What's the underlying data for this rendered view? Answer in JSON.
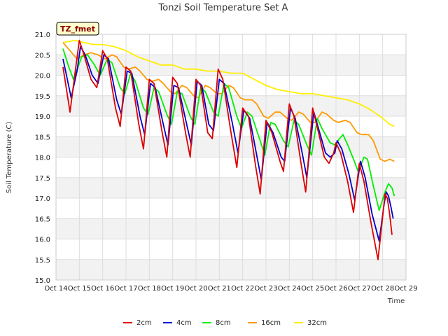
{
  "chart_data": {
    "type": "line",
    "title": "Tonzi Soil Temperature Set A",
    "xlabel": "Time",
    "ylabel": "Soil Temperature (C)",
    "annotation": "TZ_fmet",
    "ylim": [
      15.0,
      21.0
    ],
    "xlim": [
      14,
      29
    ],
    "y_ticks": [
      "15.0",
      "15.5",
      "16.0",
      "16.5",
      "17.0",
      "17.5",
      "18.0",
      "18.5",
      "19.0",
      "19.5",
      "20.0",
      "20.5",
      "21.0"
    ],
    "x_ticks": [
      "Oct 14",
      "Oct 15",
      "Oct 16",
      "Oct 17",
      "Oct 18",
      "Oct 19",
      "Oct 20",
      "Oct 21",
      "Oct 22",
      "Oct 23",
      "Oct 24",
      "Oct 25",
      "Oct 26",
      "Oct 27",
      "Oct 28",
      "Oct 29"
    ],
    "legend_position": "bottom-center",
    "series": [
      {
        "name": "2cm",
        "color": "#dd0000",
        "points": [
          [
            14.3,
            20.2
          ],
          [
            14.6,
            19.1
          ],
          [
            14.85,
            20.2
          ],
          [
            15.0,
            20.85
          ],
          [
            15.2,
            20.5
          ],
          [
            15.5,
            19.9
          ],
          [
            15.75,
            19.7
          ],
          [
            16.0,
            20.6
          ],
          [
            16.2,
            20.4
          ],
          [
            16.55,
            19.2
          ],
          [
            16.75,
            18.75
          ],
          [
            17.0,
            20.2
          ],
          [
            17.2,
            20.1
          ],
          [
            17.55,
            18.8
          ],
          [
            17.75,
            18.2
          ],
          [
            18.0,
            19.9
          ],
          [
            18.2,
            19.8
          ],
          [
            18.55,
            18.6
          ],
          [
            18.75,
            18.0
          ],
          [
            19.0,
            19.95
          ],
          [
            19.2,
            19.8
          ],
          [
            19.55,
            18.6
          ],
          [
            19.75,
            18.0
          ],
          [
            20.0,
            19.9
          ],
          [
            20.2,
            19.75
          ],
          [
            20.5,
            18.6
          ],
          [
            20.7,
            18.45
          ],
          [
            20.95,
            20.15
          ],
          [
            21.15,
            19.9
          ],
          [
            21.5,
            18.6
          ],
          [
            21.75,
            17.75
          ],
          [
            22.0,
            19.2
          ],
          [
            22.25,
            19.0
          ],
          [
            22.55,
            17.8
          ],
          [
            22.75,
            17.1
          ],
          [
            23.0,
            18.9
          ],
          [
            23.25,
            18.6
          ],
          [
            23.6,
            17.9
          ],
          [
            23.75,
            17.65
          ],
          [
            24.0,
            19.3
          ],
          [
            24.2,
            19.0
          ],
          [
            24.5,
            17.85
          ],
          [
            24.7,
            17.15
          ],
          [
            25.0,
            19.2
          ],
          [
            25.25,
            18.6
          ],
          [
            25.5,
            18.0
          ],
          [
            25.7,
            17.85
          ],
          [
            25.9,
            18.1
          ],
          [
            26.0,
            18.35
          ],
          [
            26.2,
            18.1
          ],
          [
            26.5,
            17.4
          ],
          [
            26.75,
            16.65
          ],
          [
            27.0,
            17.85
          ],
          [
            27.2,
            17.4
          ],
          [
            27.5,
            16.4
          ],
          [
            27.8,
            15.5
          ],
          [
            28.0,
            16.55
          ],
          [
            28.1,
            17.1
          ],
          [
            28.2,
            17.0
          ],
          [
            28.3,
            16.6
          ],
          [
            28.4,
            16.1
          ]
        ]
      },
      {
        "name": "4cm",
        "color": "#0000cc",
        "points": [
          [
            14.3,
            20.4
          ],
          [
            14.65,
            19.45
          ],
          [
            14.9,
            20.1
          ],
          [
            15.05,
            20.7
          ],
          [
            15.25,
            20.5
          ],
          [
            15.55,
            20.0
          ],
          [
            15.8,
            19.8
          ],
          [
            16.05,
            20.5
          ],
          [
            16.25,
            20.4
          ],
          [
            16.6,
            19.4
          ],
          [
            16.8,
            19.05
          ],
          [
            17.05,
            20.1
          ],
          [
            17.25,
            20.05
          ],
          [
            17.6,
            19.0
          ],
          [
            17.8,
            18.55
          ],
          [
            18.05,
            19.8
          ],
          [
            18.25,
            19.7
          ],
          [
            18.6,
            18.8
          ],
          [
            18.8,
            18.3
          ],
          [
            19.05,
            19.75
          ],
          [
            19.25,
            19.7
          ],
          [
            19.6,
            18.8
          ],
          [
            19.8,
            18.3
          ],
          [
            20.05,
            19.85
          ],
          [
            20.25,
            19.75
          ],
          [
            20.55,
            18.8
          ],
          [
            20.75,
            18.65
          ],
          [
            21.0,
            19.9
          ],
          [
            21.2,
            19.8
          ],
          [
            21.55,
            18.85
          ],
          [
            21.8,
            18.1
          ],
          [
            22.05,
            19.15
          ],
          [
            22.3,
            18.95
          ],
          [
            22.6,
            18.05
          ],
          [
            22.8,
            17.45
          ],
          [
            23.05,
            18.85
          ],
          [
            23.3,
            18.6
          ],
          [
            23.65,
            18.0
          ],
          [
            23.8,
            17.9
          ],
          [
            24.05,
            19.2
          ],
          [
            24.25,
            18.95
          ],
          [
            24.55,
            18.1
          ],
          [
            24.75,
            17.5
          ],
          [
            25.05,
            19.1
          ],
          [
            25.3,
            18.6
          ],
          [
            25.55,
            18.1
          ],
          [
            25.75,
            18.0
          ],
          [
            25.95,
            18.1
          ],
          [
            26.05,
            18.4
          ],
          [
            26.25,
            18.2
          ],
          [
            26.55,
            17.6
          ],
          [
            26.8,
            16.95
          ],
          [
            27.05,
            17.9
          ],
          [
            27.25,
            17.5
          ],
          [
            27.55,
            16.6
          ],
          [
            27.85,
            15.95
          ],
          [
            28.05,
            16.8
          ],
          [
            28.15,
            17.15
          ],
          [
            28.25,
            17.05
          ],
          [
            28.35,
            16.8
          ],
          [
            28.45,
            16.5
          ]
        ]
      },
      {
        "name": "8cm",
        "color": "#00ee00",
        "points": [
          [
            14.3,
            20.65
          ],
          [
            14.55,
            20.2
          ],
          [
            14.75,
            19.9
          ],
          [
            15.1,
            20.45
          ],
          [
            15.35,
            20.5
          ],
          [
            15.65,
            20.25
          ],
          [
            15.9,
            20.0
          ],
          [
            16.2,
            20.4
          ],
          [
            16.4,
            20.3
          ],
          [
            16.75,
            19.7
          ],
          [
            16.95,
            19.55
          ],
          [
            17.2,
            20.05
          ],
          [
            17.4,
            19.85
          ],
          [
            17.75,
            19.2
          ],
          [
            17.95,
            19.05
          ],
          [
            18.2,
            19.7
          ],
          [
            18.4,
            19.6
          ],
          [
            18.75,
            19.05
          ],
          [
            18.95,
            18.8
          ],
          [
            19.2,
            19.6
          ],
          [
            19.4,
            19.55
          ],
          [
            19.75,
            19.0
          ],
          [
            19.95,
            18.8
          ],
          [
            20.2,
            19.7
          ],
          [
            20.4,
            19.6
          ],
          [
            20.75,
            19.1
          ],
          [
            20.95,
            19.0
          ],
          [
            21.2,
            19.8
          ],
          [
            21.4,
            19.7
          ],
          [
            21.75,
            19.0
          ],
          [
            21.95,
            18.7
          ],
          [
            22.2,
            19.1
          ],
          [
            22.4,
            19.0
          ],
          [
            22.75,
            18.4
          ],
          [
            22.95,
            18.05
          ],
          [
            23.2,
            18.85
          ],
          [
            23.4,
            18.8
          ],
          [
            23.75,
            18.4
          ],
          [
            23.95,
            18.25
          ],
          [
            24.2,
            18.9
          ],
          [
            24.4,
            18.8
          ],
          [
            24.75,
            18.3
          ],
          [
            24.95,
            18.05
          ],
          [
            25.2,
            18.95
          ],
          [
            25.4,
            18.7
          ],
          [
            25.75,
            18.35
          ],
          [
            25.95,
            18.3
          ],
          [
            26.15,
            18.45
          ],
          [
            26.3,
            18.55
          ],
          [
            26.5,
            18.3
          ],
          [
            26.75,
            17.95
          ],
          [
            26.95,
            17.65
          ],
          [
            27.2,
            18.0
          ],
          [
            27.35,
            17.95
          ],
          [
            27.6,
            17.3
          ],
          [
            27.85,
            16.7
          ],
          [
            28.1,
            17.15
          ],
          [
            28.25,
            17.35
          ],
          [
            28.4,
            17.25
          ],
          [
            28.5,
            17.05
          ]
        ]
      },
      {
        "name": "16cm",
        "color": "#ff9900",
        "points": [
          [
            14.3,
            20.8
          ],
          [
            14.6,
            20.6
          ],
          [
            14.9,
            20.4
          ],
          [
            15.2,
            20.5
          ],
          [
            15.5,
            20.55
          ],
          [
            15.8,
            20.5
          ],
          [
            16.1,
            20.4
          ],
          [
            16.4,
            20.5
          ],
          [
            16.6,
            20.45
          ],
          [
            16.9,
            20.2
          ],
          [
            17.1,
            20.15
          ],
          [
            17.4,
            20.2
          ],
          [
            17.6,
            20.1
          ],
          [
            17.9,
            19.9
          ],
          [
            18.1,
            19.85
          ],
          [
            18.4,
            19.9
          ],
          [
            18.6,
            19.8
          ],
          [
            18.9,
            19.6
          ],
          [
            19.1,
            19.55
          ],
          [
            19.4,
            19.75
          ],
          [
            19.6,
            19.7
          ],
          [
            19.9,
            19.5
          ],
          [
            20.1,
            19.45
          ],
          [
            20.4,
            19.75
          ],
          [
            20.6,
            19.7
          ],
          [
            20.9,
            19.55
          ],
          [
            21.1,
            19.55
          ],
          [
            21.4,
            19.75
          ],
          [
            21.6,
            19.7
          ],
          [
            21.9,
            19.45
          ],
          [
            22.1,
            19.4
          ],
          [
            22.4,
            19.4
          ],
          [
            22.6,
            19.3
          ],
          [
            22.9,
            19.0
          ],
          [
            23.1,
            18.95
          ],
          [
            23.4,
            19.1
          ],
          [
            23.6,
            19.1
          ],
          [
            23.9,
            18.95
          ],
          [
            24.1,
            18.9
          ],
          [
            24.4,
            19.1
          ],
          [
            24.6,
            19.05
          ],
          [
            24.9,
            18.85
          ],
          [
            25.1,
            18.85
          ],
          [
            25.4,
            19.1
          ],
          [
            25.6,
            19.05
          ],
          [
            25.9,
            18.9
          ],
          [
            26.1,
            18.85
          ],
          [
            26.4,
            18.9
          ],
          [
            26.6,
            18.85
          ],
          [
            26.9,
            18.6
          ],
          [
            27.1,
            18.55
          ],
          [
            27.4,
            18.55
          ],
          [
            27.6,
            18.4
          ],
          [
            27.9,
            17.95
          ],
          [
            28.1,
            17.9
          ],
          [
            28.3,
            17.95
          ],
          [
            28.5,
            17.9
          ]
        ]
      },
      {
        "name": "32cm",
        "color": "#ffee00",
        "points": [
          [
            14.3,
            20.8
          ],
          [
            14.8,
            20.85
          ],
          [
            15.2,
            20.8
          ],
          [
            15.6,
            20.75
          ],
          [
            16.0,
            20.75
          ],
          [
            16.5,
            20.7
          ],
          [
            17.0,
            20.6
          ],
          [
            17.5,
            20.45
          ],
          [
            18.0,
            20.35
          ],
          [
            18.5,
            20.25
          ],
          [
            19.0,
            20.25
          ],
          [
            19.5,
            20.15
          ],
          [
            20.0,
            20.15
          ],
          [
            20.5,
            20.1
          ],
          [
            21.0,
            20.1
          ],
          [
            21.5,
            20.05
          ],
          [
            22.0,
            20.05
          ],
          [
            22.5,
            19.9
          ],
          [
            23.0,
            19.75
          ],
          [
            23.5,
            19.65
          ],
          [
            24.0,
            19.6
          ],
          [
            24.5,
            19.55
          ],
          [
            25.0,
            19.55
          ],
          [
            25.5,
            19.5
          ],
          [
            26.0,
            19.45
          ],
          [
            26.5,
            19.4
          ],
          [
            27.0,
            19.3
          ],
          [
            27.5,
            19.15
          ],
          [
            28.0,
            18.95
          ],
          [
            28.3,
            18.8
          ],
          [
            28.5,
            18.75
          ]
        ]
      }
    ]
  }
}
